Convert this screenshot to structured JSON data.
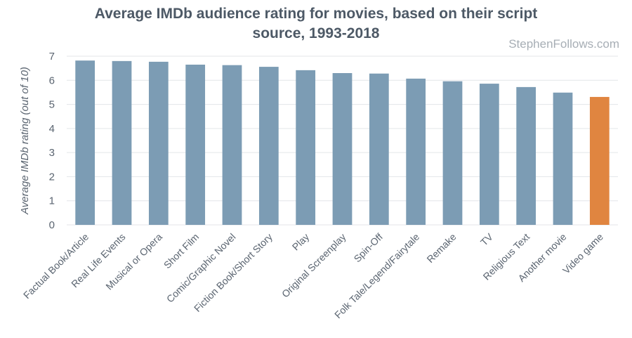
{
  "watermark": "StephenFollows.com",
  "chart_data": {
    "type": "bar",
    "title": "Average IMDb audience rating for movies, based on their script source, 1993-2018",
    "title_lines": [
      "Average IMDb audience rating for movies, based on their script",
      "source, 1993-2018"
    ],
    "xlabel": "",
    "ylabel": "Average IMDb rating (out of 10)",
    "ylim": [
      0,
      7
    ],
    "yticks": [
      0,
      1,
      2,
      3,
      4,
      5,
      6,
      7
    ],
    "grid": true,
    "categories": [
      "Factual Book/Article",
      "Real Life Events",
      "Musical or Opera",
      "Short Film",
      "Comic/Graphic Novel",
      "Fiction Book/Short Story",
      "Play",
      "Original Screenplay",
      "Spin-Off",
      "Folk Tale/Legend/Fairytale",
      "Remake",
      "TV",
      "Religious Text",
      "Another movie",
      "Video game"
    ],
    "values": [
      6.82,
      6.8,
      6.77,
      6.65,
      6.63,
      6.56,
      6.42,
      6.3,
      6.28,
      6.07,
      5.96,
      5.86,
      5.72,
      5.49,
      5.31
    ],
    "colors": {
      "default": "#7c9cb4",
      "highlight": "#e08540",
      "highlight_category": "Video game"
    }
  }
}
